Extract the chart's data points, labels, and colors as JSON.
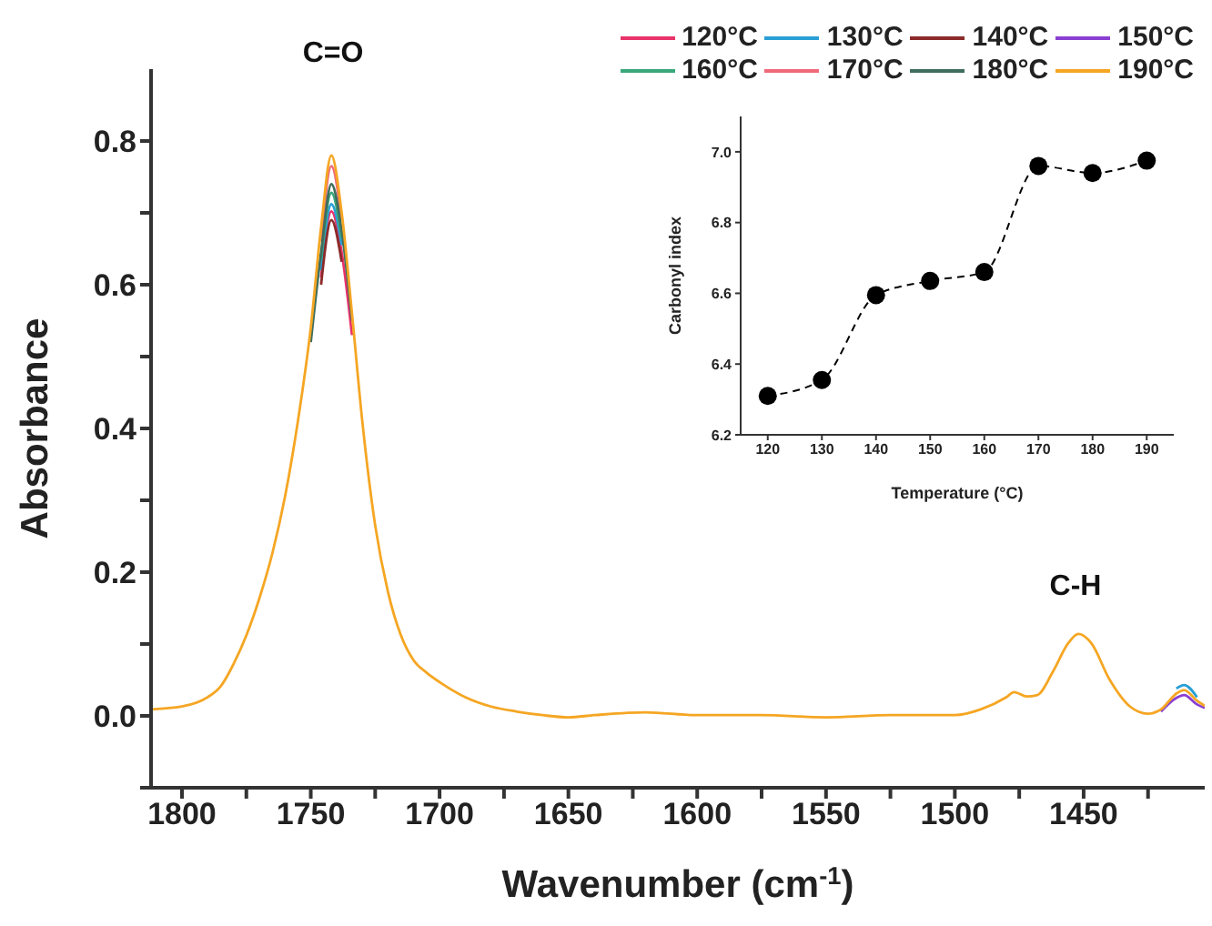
{
  "chart_data": [
    {
      "type": "line",
      "xlabel": "Wavenumber (cm$^{-1}$)",
      "ylabel": "Absorbance",
      "legend": "top right",
      "marker": "none",
      "line_style": "solid",
      "xlim": [
        1812,
        1403
      ],
      "ylim": [
        -0.1,
        0.9
      ],
      "xticks": [
        1800,
        {
          "value": 1775,
          "label": null
        },
        1750,
        {
          "value": 1725,
          "label": null
        },
        1700,
        {
          "value": 1675,
          "label": null
        },
        1650,
        {
          "value": 1625,
          "label": null
        },
        1600,
        {
          "value": 1575,
          "label": null
        },
        1550,
        {
          "value": 1525,
          "label": null
        },
        1500,
        {
          "value": 1475,
          "label": null
        },
        1450,
        {
          "value": 1425,
          "label": null
        }
      ],
      "yticks": [
        {
          "value": -0.1,
          "label": null
        },
        {
          "value": 0,
          "label": "0.0"
        },
        {
          "value": 0.1,
          "label": null
        },
        {
          "value": 0.2,
          "label": "0.2"
        },
        {
          "value": 0.3,
          "label": null
        },
        {
          "value": 0.4,
          "label": "0.4"
        },
        {
          "value": 0.5,
          "label": null
        },
        {
          "value": 0.6,
          "label": "0.6"
        },
        {
          "value": 0.7,
          "label": null
        },
        {
          "value": 0.8,
          "label": "0.8"
        }
      ],
      "annotations": [
        "C=O",
        "C-H"
      ],
      "x": [
        1812,
        1800,
        1790,
        1785,
        1780,
        1775,
        1770,
        1765,
        1760,
        1755,
        1750,
        1746,
        1742,
        1738,
        1734,
        1730,
        1725,
        1720,
        1715,
        1710,
        1705,
        1700,
        1690,
        1680,
        1670,
        1660,
        1650,
        1640,
        1620,
        1600,
        1575,
        1550,
        1525,
        1500,
        1490,
        1480,
        1477,
        1472,
        1468,
        1462,
        1456,
        1452,
        1447,
        1440,
        1432,
        1425,
        1420,
        1414,
        1411,
        1406,
        1403
      ],
      "series": [
        {
          "name": "120°C",
          "color": "#e8336b",
          "values": [
            null,
            null,
            null,
            null,
            null,
            null,
            null,
            null,
            null,
            null,
            null,
            0.61,
            0.702,
            0.645,
            0.53,
            null,
            null,
            null,
            null,
            null,
            null,
            null,
            null,
            null,
            null,
            null,
            null,
            null,
            null,
            null,
            null,
            null,
            null,
            null,
            null,
            null,
            null,
            null,
            null,
            null,
            null,
            null,
            null,
            null,
            null,
            null,
            null,
            null,
            null,
            null,
            null
          ]
        },
        {
          "name": "130°C",
          "color": "#2a9fd6",
          "values": [
            null,
            null,
            null,
            null,
            null,
            null,
            null,
            null,
            null,
            null,
            null,
            0.62,
            0.712,
            0.655,
            null,
            null,
            null,
            null,
            null,
            null,
            null,
            null,
            null,
            null,
            null,
            null,
            null,
            null,
            null,
            null,
            null,
            null,
            null,
            null,
            null,
            null,
            null,
            null,
            null,
            null,
            null,
            null,
            null,
            null,
            null,
            null,
            null,
            0.038,
            0.043,
            0.026,
            null
          ]
        },
        {
          "name": "140°C",
          "color": "#8b2a2a",
          "values": [
            null,
            null,
            null,
            null,
            null,
            null,
            null,
            null,
            null,
            null,
            null,
            0.6,
            0.69,
            0.632,
            null,
            null,
            null,
            null,
            null,
            null,
            null,
            null,
            null,
            null,
            null,
            null,
            null,
            null,
            null,
            null,
            null,
            null,
            null,
            null,
            null,
            null,
            null,
            null,
            null,
            null,
            null,
            null,
            null,
            null,
            null,
            null,
            null,
            null,
            null,
            null,
            null
          ]
        },
        {
          "name": "150°C",
          "color": "#8a3fd1",
          "values": [
            null,
            null,
            null,
            null,
            null,
            null,
            null,
            null,
            null,
            null,
            null,
            null,
            null,
            null,
            null,
            null,
            null,
            null,
            null,
            null,
            null,
            null,
            null,
            null,
            null,
            null,
            null,
            null,
            null,
            null,
            null,
            null,
            null,
            null,
            null,
            null,
            null,
            null,
            null,
            null,
            null,
            null,
            null,
            null,
            null,
            null,
            0.006,
            0.025,
            0.029,
            0.016,
            0.011
          ]
        },
        {
          "name": "160°C",
          "color": "#3aa77a",
          "values": [
            null,
            null,
            null,
            null,
            null,
            null,
            null,
            null,
            null,
            null,
            null,
            0.635,
            0.728,
            0.665,
            null,
            null,
            null,
            null,
            null,
            null,
            null,
            null,
            null,
            null,
            null,
            null,
            null,
            null,
            null,
            null,
            null,
            null,
            null,
            null,
            null,
            null,
            null,
            null,
            null,
            null,
            null,
            null,
            null,
            null,
            null,
            null,
            null,
            null,
            null,
            null,
            null
          ]
        },
        {
          "name": "170°C",
          "color": "#f06a7a",
          "values": [
            null,
            null,
            null,
            null,
            null,
            null,
            null,
            null,
            null,
            null,
            null,
            0.66,
            0.765,
            0.69,
            null,
            null,
            null,
            null,
            null,
            null,
            null,
            null,
            null,
            null,
            null,
            null,
            null,
            null,
            null,
            null,
            null,
            null,
            null,
            null,
            null,
            null,
            null,
            null,
            null,
            null,
            null,
            null,
            null,
            null,
            null,
            null,
            null,
            null,
            null,
            null,
            null
          ]
        },
        {
          "name": "180°C",
          "color": "#3f6e5e",
          "values": [
            null,
            null,
            null,
            null,
            null,
            null,
            null,
            null,
            null,
            null,
            0.52,
            0.645,
            0.74,
            0.675,
            0.55,
            null,
            null,
            null,
            null,
            null,
            null,
            null,
            null,
            null,
            null,
            null,
            null,
            null,
            null,
            null,
            null,
            null,
            null,
            null,
            null,
            null,
            null,
            null,
            null,
            null,
            null,
            null,
            null,
            null,
            null,
            null,
            null,
            null,
            null,
            null,
            null
          ]
        },
        {
          "name": "190°C",
          "color": "#f5a623",
          "values": [
            0.009,
            0.013,
            0.026,
            0.041,
            0.072,
            0.112,
            0.163,
            0.225,
            0.305,
            0.41,
            0.54,
            0.68,
            0.78,
            0.7,
            0.56,
            0.41,
            0.265,
            0.172,
            0.112,
            0.077,
            0.06,
            0.047,
            0.026,
            0.013,
            0.006,
            0.001,
            -0.002,
            0.001,
            0.005,
            0.001,
            0.001,
            -0.002,
            0.001,
            0.001,
            0.009,
            0.026,
            0.033,
            0.027,
            0.029,
            0.061,
            0.101,
            0.114,
            0.101,
            0.051,
            0.013,
            0.003,
            0.009,
            0.031,
            0.036,
            0.021,
            0.014
          ]
        }
      ]
    },
    {
      "type": "line",
      "xlabel": "Temperature (°C)",
      "ylabel": "Carbonyl index",
      "marker": "circle",
      "line_style": "dashed",
      "xlim": [
        115,
        195
      ],
      "ylim": [
        6.2,
        7.1
      ],
      "xticks": [
        120,
        130,
        140,
        150,
        160,
        170,
        180,
        190
      ],
      "yticks": [
        {
          "value": 6.2,
          "label": "6.2"
        },
        {
          "value": 6.4,
          "label": "6.4"
        },
        {
          "value": 6.6,
          "label": "6.6"
        },
        {
          "value": 6.8,
          "label": "6.8"
        },
        {
          "value": 7,
          "label": "7.0"
        }
      ],
      "x": [
        120,
        130,
        140,
        150,
        160,
        170,
        180,
        190
      ],
      "series": [
        {
          "color": "#000000",
          "values": [
            6.31,
            6.355,
            6.595,
            6.635,
            6.66,
            6.96,
            6.94,
            6.975
          ]
        }
      ]
    }
  ]
}
